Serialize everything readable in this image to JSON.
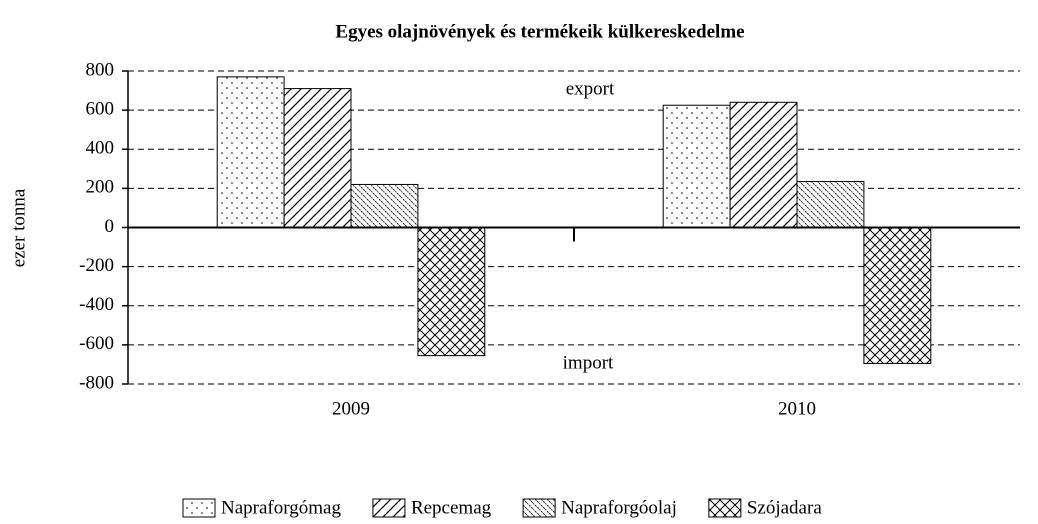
{
  "chart_data": {
    "type": "bar",
    "title": "Egyes olajnövények és termékeik külkereskedelme",
    "y_label": "ezer tonna",
    "annotations": [
      "export",
      "import"
    ],
    "categories": [
      "2009",
      "2010"
    ],
    "series": [
      {
        "name": "Napraforgómag",
        "color": "#000000",
        "pattern": "dots",
        "values": [
          770,
          625
        ]
      },
      {
        "name": "Repcemag",
        "color": "#000000",
        "pattern": "diagonal",
        "values": [
          710,
          640
        ]
      },
      {
        "name": "Napraforgóolaj",
        "color": "#000000",
        "pattern": "backdiagonal",
        "values": [
          220,
          235
        ]
      },
      {
        "name": "Szójadara",
        "color": "#000000",
        "pattern": "crosshatch",
        "values": [
          -655,
          -695
        ]
      }
    ],
    "ylim": [
      -800,
      800
    ],
    "yticks": [
      -800,
      -600,
      -400,
      -200,
      0,
      200,
      400,
      600,
      800
    ],
    "grid": true,
    "legend": "bottom"
  }
}
